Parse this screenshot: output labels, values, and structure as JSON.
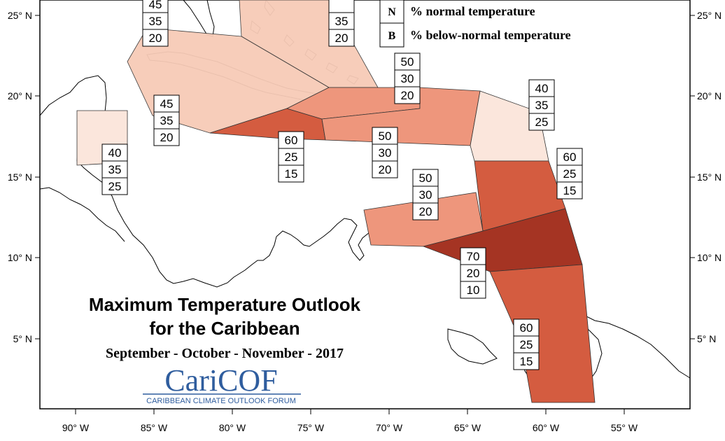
{
  "title": {
    "line1": "Maximum Temperature Outlook",
    "line2": "for the Caribbean",
    "season": "September - October - November - 2017"
  },
  "logo": {
    "main": "CariCOF",
    "sub": "CARIBBEAN CLIMATE OUTLOOK FORUM"
  },
  "legend": {
    "items": [
      {
        "letter": "N",
        "label": "% normal temperature"
      },
      {
        "letter": "B",
        "label": "% below-normal temperature"
      }
    ]
  },
  "axes": {
    "lon_labels": [
      "90° W",
      "85° W",
      "80° W",
      "75° W",
      "70° W",
      "65° W",
      "60° W",
      "55° W"
    ],
    "lat_labels": [
      "25° N",
      "20° N",
      "15° N",
      "10° N",
      "5° N"
    ]
  },
  "colors": {
    "a_40": "#fbe6dc",
    "b_45": "#f7cbb7",
    "c_50": "#ee967c",
    "d_60": "#d45c40",
    "e_70": "#a53423"
  },
  "regions": [
    {
      "id": "bahamas-east",
      "color": "#f7cbb7",
      "probs": [
        "",
        "35",
        "20"
      ]
    },
    {
      "id": "bahamas-west",
      "color": "#f7cbb7",
      "probs": [
        "45",
        "35",
        "20"
      ]
    },
    {
      "id": "cuba",
      "color": "#f7cbb7",
      "probs": [
        "45",
        "35",
        "20"
      ]
    },
    {
      "id": "belize",
      "color": "#fbe6dc",
      "probs": [
        "40",
        "35",
        "25"
      ]
    },
    {
      "id": "jamaica",
      "color": "#d45c40",
      "probs": [
        "60",
        "25",
        "15"
      ]
    },
    {
      "id": "hispaniola",
      "color": "#ee967c",
      "probs": [
        "50",
        "30",
        "20"
      ]
    },
    {
      "id": "puerto-rico",
      "color": "#ee967c",
      "probs": [
        "50",
        "30",
        "20"
      ]
    },
    {
      "id": "leeward-islands",
      "color": "#fbe6dc",
      "probs": [
        "40",
        "35",
        "25"
      ]
    },
    {
      "id": "windward-islands",
      "color": "#d45c40",
      "probs": [
        "60",
        "25",
        "15"
      ]
    },
    {
      "id": "abc-islands",
      "color": "#ee967c",
      "probs": [
        "50",
        "30",
        "20"
      ]
    },
    {
      "id": "trinidad",
      "color": "#a53423",
      "probs": [
        "70",
        "20",
        "10"
      ]
    },
    {
      "id": "guianas",
      "color": "#d45c40",
      "probs": [
        "60",
        "25",
        "15"
      ]
    }
  ]
}
